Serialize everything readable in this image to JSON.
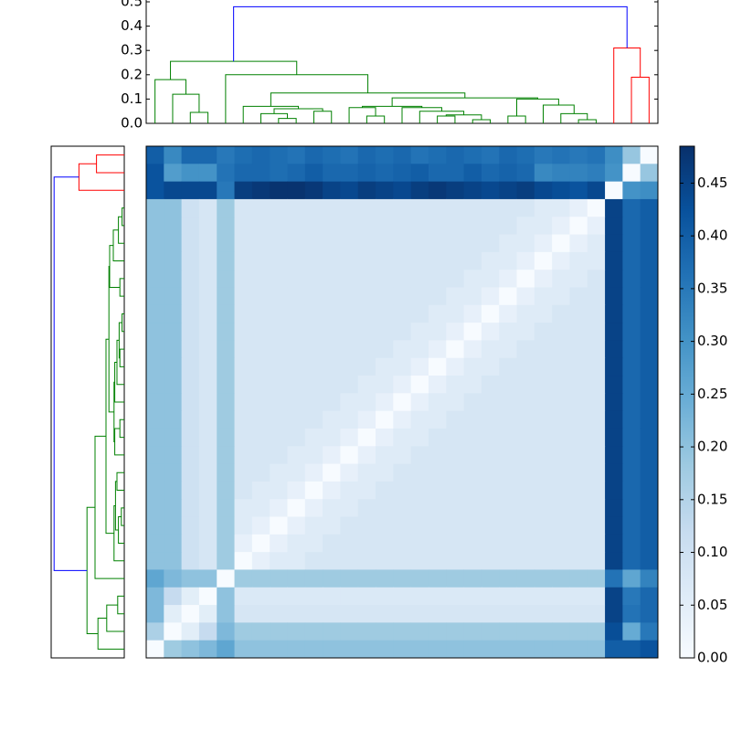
{
  "chart_data": {
    "type": "heatmap",
    "z": [
      [
        0.4,
        0.32,
        0.38,
        0.38,
        0.35,
        0.37,
        0.38,
        0.37,
        0.36,
        0.38,
        0.37,
        0.36,
        0.38,
        0.37,
        0.38,
        0.36,
        0.37,
        0.38,
        0.37,
        0.36,
        0.38,
        0.37,
        0.35,
        0.36,
        0.35,
        0.36,
        0.31,
        0.19,
        0
      ],
      [
        0.42,
        0.28,
        0.3,
        0.3,
        0.36,
        0.38,
        0.38,
        0.37,
        0.38,
        0.4,
        0.38,
        0.38,
        0.39,
        0.38,
        0.39,
        0.4,
        0.38,
        0.38,
        0.4,
        0.38,
        0.39,
        0.38,
        0.32,
        0.33,
        0.33,
        0.34,
        0.3,
        0,
        0.19
      ],
      [
        0.42,
        0.44,
        0.44,
        0.44,
        0.35,
        0.46,
        0.47,
        0.48,
        0.48,
        0.47,
        0.45,
        0.44,
        0.46,
        0.45,
        0.44,
        0.46,
        0.47,
        0.46,
        0.45,
        0.44,
        0.45,
        0.46,
        0.44,
        0.43,
        0.42,
        0.44,
        0,
        0.3,
        0.31
      ],
      [
        0.2,
        0.2,
        0.1,
        0.08,
        0.18,
        0.08,
        0.08,
        0.08,
        0.08,
        0.08,
        0.08,
        0.08,
        0.08,
        0.08,
        0.08,
        0.08,
        0.08,
        0.08,
        0.08,
        0.08,
        0.08,
        0.08,
        0.06,
        0.06,
        0.04,
        0,
        0.45,
        0.38,
        0.4
      ],
      [
        0.2,
        0.2,
        0.1,
        0.08,
        0.18,
        0.08,
        0.08,
        0.08,
        0.08,
        0.08,
        0.08,
        0.08,
        0.08,
        0.08,
        0.08,
        0.08,
        0.08,
        0.08,
        0.08,
        0.08,
        0.08,
        0.06,
        0.06,
        0.04,
        0,
        0.04,
        0.45,
        0.38,
        0.4
      ],
      [
        0.2,
        0.2,
        0.1,
        0.08,
        0.18,
        0.08,
        0.08,
        0.08,
        0.08,
        0.08,
        0.08,
        0.08,
        0.08,
        0.08,
        0.08,
        0.08,
        0.08,
        0.08,
        0.08,
        0.08,
        0.06,
        0.06,
        0.04,
        0,
        0.04,
        0.06,
        0.45,
        0.38,
        0.4
      ],
      [
        0.2,
        0.2,
        0.1,
        0.08,
        0.18,
        0.08,
        0.08,
        0.08,
        0.08,
        0.08,
        0.08,
        0.08,
        0.08,
        0.08,
        0.08,
        0.08,
        0.08,
        0.08,
        0.08,
        0.06,
        0.06,
        0.04,
        0,
        0.04,
        0.06,
        0.06,
        0.45,
        0.38,
        0.4
      ],
      [
        0.2,
        0.2,
        0.1,
        0.08,
        0.18,
        0.08,
        0.08,
        0.08,
        0.08,
        0.08,
        0.08,
        0.08,
        0.08,
        0.08,
        0.08,
        0.08,
        0.08,
        0.08,
        0.06,
        0.06,
        0.04,
        0,
        0.04,
        0.06,
        0.06,
        0.08,
        0.45,
        0.38,
        0.4
      ],
      [
        0.2,
        0.2,
        0.1,
        0.08,
        0.18,
        0.08,
        0.08,
        0.08,
        0.08,
        0.08,
        0.08,
        0.08,
        0.08,
        0.08,
        0.08,
        0.08,
        0.08,
        0.06,
        0.06,
        0.04,
        0,
        0.04,
        0.06,
        0.06,
        0.08,
        0.08,
        0.45,
        0.38,
        0.4
      ],
      [
        0.2,
        0.2,
        0.1,
        0.08,
        0.18,
        0.08,
        0.08,
        0.08,
        0.08,
        0.08,
        0.08,
        0.08,
        0.08,
        0.08,
        0.08,
        0.08,
        0.06,
        0.06,
        0.04,
        0,
        0.04,
        0.06,
        0.06,
        0.08,
        0.08,
        0.08,
        0.45,
        0.38,
        0.4
      ],
      [
        0.2,
        0.2,
        0.1,
        0.08,
        0.18,
        0.08,
        0.08,
        0.08,
        0.08,
        0.08,
        0.08,
        0.08,
        0.08,
        0.08,
        0.08,
        0.06,
        0.06,
        0.04,
        0,
        0.04,
        0.06,
        0.06,
        0.08,
        0.08,
        0.08,
        0.08,
        0.45,
        0.38,
        0.4
      ],
      [
        0.2,
        0.2,
        0.1,
        0.08,
        0.18,
        0.08,
        0.08,
        0.08,
        0.08,
        0.08,
        0.08,
        0.08,
        0.08,
        0.08,
        0.06,
        0.06,
        0.04,
        0,
        0.04,
        0.06,
        0.06,
        0.08,
        0.08,
        0.08,
        0.08,
        0.08,
        0.45,
        0.38,
        0.4
      ],
      [
        0.2,
        0.2,
        0.1,
        0.08,
        0.18,
        0.08,
        0.08,
        0.08,
        0.08,
        0.08,
        0.08,
        0.08,
        0.08,
        0.06,
        0.06,
        0.04,
        0,
        0.04,
        0.06,
        0.06,
        0.08,
        0.08,
        0.08,
        0.08,
        0.08,
        0.08,
        0.45,
        0.38,
        0.4
      ],
      [
        0.2,
        0.2,
        0.1,
        0.08,
        0.18,
        0.08,
        0.08,
        0.08,
        0.08,
        0.08,
        0.08,
        0.08,
        0.06,
        0.06,
        0.04,
        0,
        0.04,
        0.06,
        0.06,
        0.08,
        0.08,
        0.08,
        0.08,
        0.08,
        0.08,
        0.08,
        0.45,
        0.38,
        0.4
      ],
      [
        0.2,
        0.2,
        0.1,
        0.08,
        0.18,
        0.08,
        0.08,
        0.08,
        0.08,
        0.08,
        0.08,
        0.06,
        0.06,
        0.04,
        0,
        0.04,
        0.06,
        0.06,
        0.08,
        0.08,
        0.08,
        0.08,
        0.08,
        0.08,
        0.08,
        0.08,
        0.45,
        0.38,
        0.4
      ],
      [
        0.2,
        0.2,
        0.1,
        0.08,
        0.18,
        0.08,
        0.08,
        0.08,
        0.08,
        0.08,
        0.06,
        0.06,
        0.04,
        0,
        0.04,
        0.06,
        0.06,
        0.08,
        0.08,
        0.08,
        0.08,
        0.08,
        0.08,
        0.08,
        0.08,
        0.08,
        0.45,
        0.38,
        0.4
      ],
      [
        0.2,
        0.2,
        0.1,
        0.08,
        0.18,
        0.08,
        0.08,
        0.08,
        0.08,
        0.06,
        0.06,
        0.04,
        0,
        0.04,
        0.06,
        0.06,
        0.08,
        0.08,
        0.08,
        0.08,
        0.08,
        0.08,
        0.08,
        0.08,
        0.08,
        0.08,
        0.45,
        0.38,
        0.4
      ],
      [
        0.2,
        0.2,
        0.1,
        0.08,
        0.18,
        0.08,
        0.08,
        0.08,
        0.06,
        0.06,
        0.04,
        0,
        0.04,
        0.06,
        0.06,
        0.08,
        0.08,
        0.08,
        0.08,
        0.08,
        0.08,
        0.08,
        0.08,
        0.08,
        0.08,
        0.08,
        0.45,
        0.38,
        0.4
      ],
      [
        0.2,
        0.2,
        0.1,
        0.08,
        0.18,
        0.08,
        0.08,
        0.06,
        0.06,
        0.04,
        0,
        0.04,
        0.06,
        0.06,
        0.08,
        0.08,
        0.08,
        0.08,
        0.08,
        0.08,
        0.08,
        0.08,
        0.08,
        0.08,
        0.08,
        0.08,
        0.45,
        0.38,
        0.4
      ],
      [
        0.2,
        0.2,
        0.1,
        0.08,
        0.18,
        0.08,
        0.06,
        0.06,
        0.04,
        0,
        0.04,
        0.06,
        0.06,
        0.08,
        0.08,
        0.08,
        0.08,
        0.08,
        0.08,
        0.08,
        0.08,
        0.08,
        0.08,
        0.08,
        0.08,
        0.08,
        0.45,
        0.38,
        0.4
      ],
      [
        0.2,
        0.2,
        0.1,
        0.08,
        0.18,
        0.06,
        0.06,
        0.04,
        0,
        0.04,
        0.06,
        0.06,
        0.08,
        0.08,
        0.08,
        0.08,
        0.08,
        0.08,
        0.08,
        0.08,
        0.08,
        0.08,
        0.08,
        0.08,
        0.08,
        0.08,
        0.45,
        0.38,
        0.4
      ],
      [
        0.2,
        0.2,
        0.1,
        0.08,
        0.18,
        0.06,
        0.04,
        0,
        0.04,
        0.06,
        0.06,
        0.08,
        0.08,
        0.08,
        0.08,
        0.08,
        0.08,
        0.08,
        0.08,
        0.08,
        0.08,
        0.08,
        0.08,
        0.08,
        0.08,
        0.08,
        0.45,
        0.38,
        0.4
      ],
      [
        0.2,
        0.2,
        0.1,
        0.08,
        0.18,
        0.04,
        0,
        0.04,
        0.06,
        0.06,
        0.08,
        0.08,
        0.08,
        0.08,
        0.08,
        0.08,
        0.08,
        0.08,
        0.08,
        0.08,
        0.08,
        0.08,
        0.08,
        0.08,
        0.08,
        0.08,
        0.45,
        0.38,
        0.4
      ],
      [
        0.2,
        0.2,
        0.1,
        0.08,
        0.18,
        0,
        0.04,
        0.06,
        0.06,
        0.08,
        0.08,
        0.08,
        0.08,
        0.08,
        0.08,
        0.08,
        0.08,
        0.08,
        0.08,
        0.08,
        0.08,
        0.08,
        0.08,
        0.08,
        0.08,
        0.08,
        0.45,
        0.38,
        0.4
      ],
      [
        0.26,
        0.22,
        0.2,
        0.2,
        0,
        0.18,
        0.18,
        0.18,
        0.18,
        0.18,
        0.18,
        0.18,
        0.18,
        0.18,
        0.18,
        0.18,
        0.18,
        0.18,
        0.18,
        0.18,
        0.18,
        0.18,
        0.18,
        0.18,
        0.18,
        0.18,
        0.36,
        0.26,
        0.33
      ],
      [
        0.22,
        0.12,
        0.05,
        0,
        0.2,
        0.07,
        0.07,
        0.07,
        0.07,
        0.07,
        0.07,
        0.07,
        0.07,
        0.07,
        0.07,
        0.07,
        0.07,
        0.07,
        0.07,
        0.07,
        0.07,
        0.07,
        0.07,
        0.07,
        0.07,
        0.07,
        0.45,
        0.35,
        0.38
      ],
      [
        0.22,
        0.05,
        0,
        0.05,
        0.2,
        0.08,
        0.08,
        0.08,
        0.08,
        0.08,
        0.08,
        0.08,
        0.08,
        0.08,
        0.08,
        0.08,
        0.08,
        0.08,
        0.08,
        0.08,
        0.08,
        0.08,
        0.08,
        0.08,
        0.08,
        0.08,
        0.45,
        0.36,
        0.38
      ],
      [
        0.16,
        0,
        0.05,
        0.12,
        0.22,
        0.18,
        0.18,
        0.18,
        0.18,
        0.18,
        0.18,
        0.18,
        0.18,
        0.18,
        0.18,
        0.18,
        0.18,
        0.18,
        0.18,
        0.18,
        0.18,
        0.18,
        0.18,
        0.18,
        0.18,
        0.18,
        0.43,
        0.25,
        0.35
      ],
      [
        0,
        0.18,
        0.2,
        0.22,
        0.26,
        0.2,
        0.2,
        0.2,
        0.2,
        0.2,
        0.2,
        0.2,
        0.2,
        0.2,
        0.2,
        0.2,
        0.2,
        0.2,
        0.2,
        0.2,
        0.2,
        0.2,
        0.2,
        0.2,
        0.2,
        0.2,
        0.4,
        0.4,
        0.42
      ]
    ],
    "clim": [
      0,
      0.485
    ],
    "cmap": [
      "#f7fbff",
      "#deebf7",
      "#c6dbef",
      "#9ecae1",
      "#6baed6",
      "#4292c6",
      "#2171b5",
      "#08519c",
      "#08306b"
    ],
    "cticks": [
      {
        "value": 0,
        "label": "0.00"
      },
      0.05,
      {
        "value": 0.1,
        "label": "0.10"
      },
      0.15,
      {
        "value": 0.2,
        "label": "0.20"
      },
      0.25,
      {
        "value": 0.3,
        "label": "0.30"
      },
      0.35,
      {
        "value": 0.4,
        "label": "0.40"
      },
      0.45
    ],
    "dendrogram": {
      "ylim": [
        0,
        0.5
      ],
      "yticks": [
        {
          "value": 0,
          "label": "0.0"
        },
        0.1,
        0.2,
        0.3,
        0.4,
        0.5
      ],
      "links": [
        [
          7,
          8,
          0.02
        ],
        [
          6,
          29,
          0.04
        ],
        [
          9,
          10,
          0.05
        ],
        [
          30,
          31,
          0.06
        ],
        [
          5,
          32,
          0.07
        ],
        [
          12,
          13,
          0.03
        ],
        [
          11,
          34,
          0.065
        ],
        [
          16,
          17,
          0.03
        ],
        [
          18,
          19,
          0.015
        ],
        [
          36,
          37,
          0.035
        ],
        [
          15,
          38,
          0.05
        ],
        [
          14,
          39,
          0.065
        ],
        [
          24,
          25,
          0.015
        ],
        [
          23,
          41,
          0.04
        ],
        [
          20,
          21,
          0.03
        ],
        [
          22,
          42,
          0.075
        ],
        [
          43,
          44,
          0.1
        ],
        [
          35,
          40,
          0.07
        ],
        [
          46,
          45,
          0.105
        ],
        [
          33,
          47,
          0.125
        ],
        [
          4,
          48,
          0.2
        ],
        [
          2,
          3,
          0.045
        ],
        [
          1,
          50,
          0.12
        ],
        [
          0,
          51,
          0.18
        ],
        [
          52,
          49,
          0.255
        ],
        [
          27,
          28,
          0.19
        ],
        [
          26,
          54,
          0.31
        ],
        [
          53,
          55,
          0.48
        ]
      ],
      "link_colors": [
        "#008000",
        "#008000",
        "#008000",
        "#008000",
        "#008000",
        "#008000",
        "#008000",
        "#008000",
        "#008000",
        "#008000",
        "#008000",
        "#008000",
        "#008000",
        "#008000",
        "#008000",
        "#008000",
        "#008000",
        "#008000",
        "#008000",
        "#008000",
        "#008000",
        "#008000",
        "#008000",
        "#008000",
        "#008000",
        "#ff0000",
        "#ff0000",
        "#0000ff"
      ]
    }
  }
}
